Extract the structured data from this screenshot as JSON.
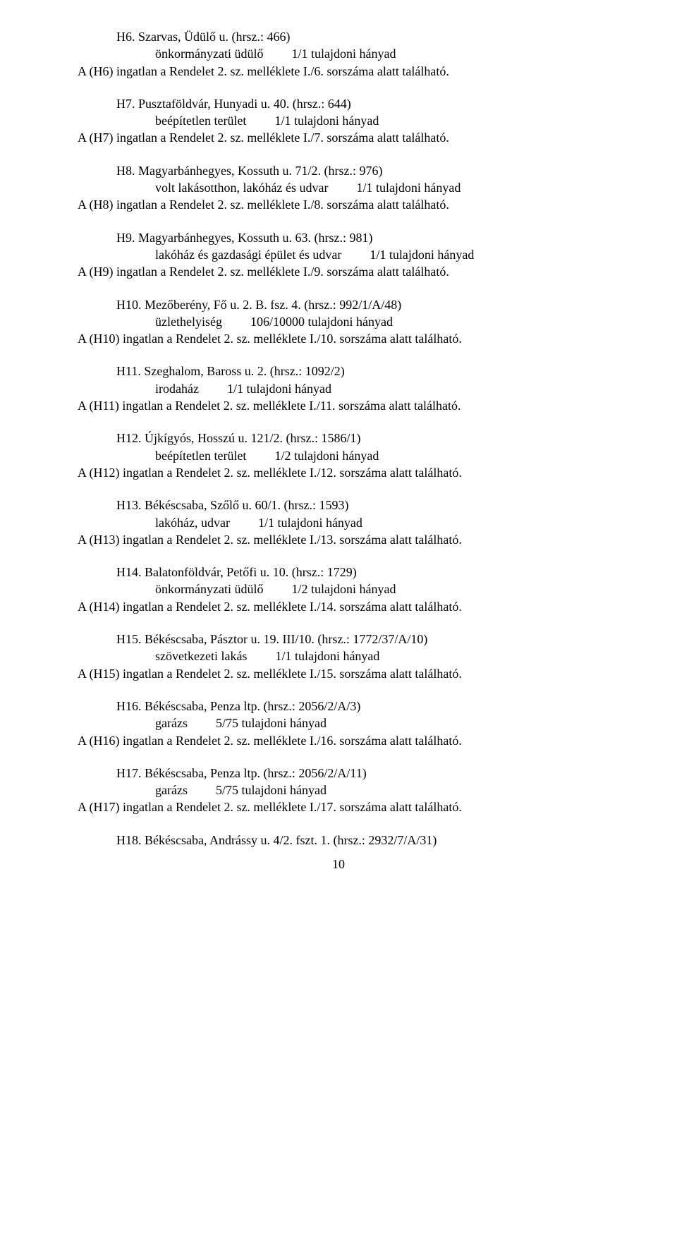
{
  "entries": [
    {
      "header": "H6.   Szarvas, Üdülő u. (hrsz.: 466)",
      "detail_left": "önkormányzati üdülő",
      "detail_right": "1/1 tulajdoni hányad",
      "ref": "A (H6) ingatlan a Rendelet 2. sz. melléklete I./6. sorszáma alatt található."
    },
    {
      "header": "H7.   Pusztaföldvár, Hunyadi u. 40. (hrsz.: 644)",
      "detail_left": "beépítetlen terület",
      "detail_right": "1/1 tulajdoni hányad",
      "ref": "A (H7) ingatlan a Rendelet 2. sz. melléklete I./7. sorszáma alatt található."
    },
    {
      "header": "H8. Magyarbánhegyes, Kossuth u. 71/2. (hrsz.: 976)",
      "detail_left": "volt lakásotthon, lakóház és udvar",
      "detail_right": "1/1 tulajdoni hányad",
      "ref": "A (H8) ingatlan a Rendelet 2. sz. melléklete I./8. sorszáma alatt található."
    },
    {
      "header": "H9. Magyarbánhegyes, Kossuth u. 63. (hrsz.: 981)",
      "detail_left": "lakóház és gazdasági épület és udvar",
      "detail_right": "1/1 tulajdoni hányad",
      "ref": "A (H9) ingatlan a Rendelet 2. sz. melléklete I./9. sorszáma alatt található."
    },
    {
      "header": "H10. Mezőberény, Fő u. 2. B. fsz. 4. (hrsz.: 992/1/A/48)",
      "detail_left": "üzlethelyiség",
      "detail_right": "106/10000 tulajdoni hányad",
      "ref": "A (H10) ingatlan a Rendelet 2. sz. melléklete I./10. sorszáma alatt található."
    },
    {
      "header": "H11. Szeghalom, Baross u. 2. (hrsz.: 1092/2)",
      "detail_left": "irodaház",
      "detail_right": "1/1 tulajdoni hányad",
      "ref": "A (H11) ingatlan a Rendelet 2. sz. melléklete I./11. sorszáma alatt található."
    },
    {
      "header": "H12. Újkígyós, Hosszú u. 121/2. (hrsz.: 1586/1)",
      "detail_left": "beépítetlen terület",
      "detail_right": "1/2 tulajdoni hányad",
      "ref": "A (H12) ingatlan a Rendelet 2. sz. melléklete I./12. sorszáma alatt található."
    },
    {
      "header": "H13. Békéscsaba, Szőlő u. 60/1. (hrsz.: 1593)",
      "detail_left": "lakóház, udvar",
      "detail_right": "1/1 tulajdoni hányad",
      "ref": "A (H13) ingatlan a Rendelet 2. sz. melléklete I./13. sorszáma alatt található."
    },
    {
      "header": "H14. Balatonföldvár, Petőfi u. 10. (hrsz.: 1729)",
      "detail_left": "önkormányzati üdülő",
      "detail_right": "1/2 tulajdoni hányad",
      "ref": "A (H14) ingatlan a Rendelet 2. sz. melléklete I./14. sorszáma alatt található."
    },
    {
      "header": "H15. Békéscsaba, Pásztor u. 19. III/10. (hrsz.: 1772/37/A/10)",
      "detail_left": "szövetkezeti lakás",
      "detail_right": "1/1 tulajdoni hányad",
      "ref": "A (H15) ingatlan a Rendelet 2. sz. melléklete I./15. sorszáma alatt található."
    },
    {
      "header": "H16. Békéscsaba, Penza ltp. (hrsz.: 2056/2/A/3)",
      "detail_left": "garázs",
      "detail_right": "5/75 tulajdoni hányad",
      "ref": "A (H16) ingatlan a Rendelet 2. sz. melléklete I./16. sorszáma alatt található."
    },
    {
      "header": "H17. Békéscsaba, Penza ltp. (hrsz.: 2056/2/A/11)",
      "detail_left": "garázs",
      "detail_right": "5/75 tulajdoni hányad",
      "ref": "A (H17) ingatlan a Rendelet 2. sz. melléklete I./17. sorszáma alatt található."
    }
  ],
  "lastHeader": "H18. Békéscsaba, Andrássy u. 4/2. fszt. 1. (hrsz.: 2932/7/A/31)",
  "pageNumber": "10"
}
